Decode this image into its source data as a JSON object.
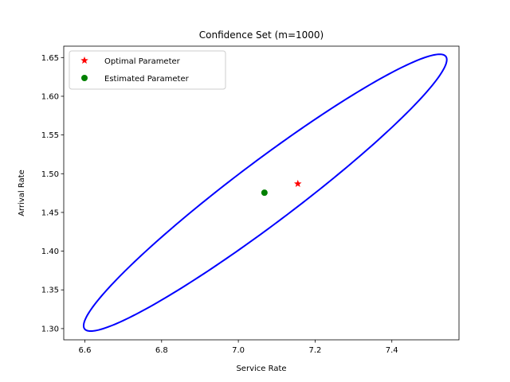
{
  "chart_data": {
    "type": "scatter",
    "title": "Confidence Set (m=1000)",
    "xlabel": "Service Rate",
    "ylabel": "Arrival Rate",
    "xlim": [
      6.545,
      7.575
    ],
    "ylim": [
      1.2855,
      1.6647
    ],
    "xticks": [
      6.6,
      6.8,
      7.0,
      7.2,
      7.4
    ],
    "xtick_labels": [
      "6.6",
      "6.8",
      "7.0",
      "7.2",
      "7.4"
    ],
    "yticks": [
      1.3,
      1.35,
      1.4,
      1.45,
      1.5,
      1.55,
      1.6,
      1.65
    ],
    "ytick_labels": [
      "1.30",
      "1.35",
      "1.40",
      "1.45",
      "1.50",
      "1.55",
      "1.60",
      "1.65"
    ],
    "grid": false,
    "legend_position": "top-left",
    "confidence_ellipse": {
      "center": [
        7.07,
        1.4755
      ],
      "a": [
        0.472,
        0.1748
      ],
      "b": [
        -0.0335,
        0.0372
      ],
      "color": "#0000ff"
    },
    "series": [
      {
        "name": "Optimal Parameter",
        "marker": "star",
        "color": "#ff0000",
        "x": 7.155,
        "y": 1.487
      },
      {
        "name": "Estimated Parameter",
        "marker": "circle",
        "color": "#008000",
        "x": 7.068,
        "y": 1.4755
      }
    ]
  }
}
